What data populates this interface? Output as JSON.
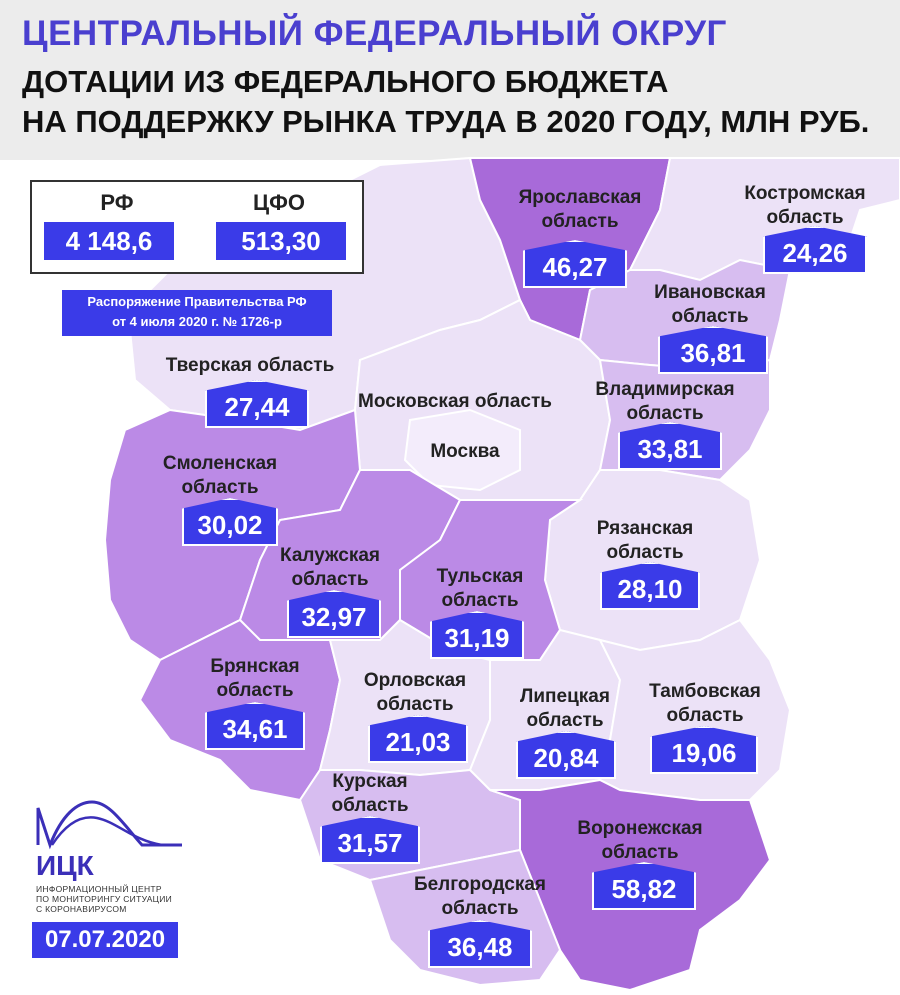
{
  "header": {
    "title_line1": "ЦЕНТРАЛЬНЫЙ ФЕДЕРАЛЬНЫЙ ОКРУГ",
    "title_line2": "ДОТАЦИИ ИЗ ФЕДЕРАЛЬНОГО БЮДЖЕТА",
    "title_line3": "НА ПОДДЕРЖКУ РЫНКА ТРУДА В 2020 ГОДУ, МЛН РУБ."
  },
  "totals": {
    "rf_label": "РФ",
    "rf_value": "4 148,6",
    "cfo_label": "ЦФО",
    "cfo_value": "513,30"
  },
  "decree": {
    "line1": "Распоряжение Правительства РФ",
    "line2": "от 4 июля 2020 г.  № 1726-р"
  },
  "regions": {
    "yaroslavl": {
      "name1": "Ярославская",
      "name2": "область",
      "value": "46,27"
    },
    "kostroma": {
      "name1": "Костромская",
      "name2": "область",
      "value": "24,26"
    },
    "ivanovo": {
      "name1": "Ивановская",
      "name2": "область",
      "value": "36,81"
    },
    "tver": {
      "name1": "Тверская область",
      "value": "27,44"
    },
    "moscow_oblast": {
      "name1": "Московская область"
    },
    "moscow": {
      "name1": "Москва"
    },
    "vladimir": {
      "name1": "Владимирская",
      "name2": "область",
      "value": "33,81"
    },
    "smolensk": {
      "name1": "Смоленская",
      "name2": "область",
      "value": "30,02"
    },
    "ryazan": {
      "name1": "Рязанская",
      "name2": "область",
      "value": "28,10"
    },
    "kaluga": {
      "name1": "Калужская",
      "name2": "область",
      "value": "32,97"
    },
    "tula": {
      "name1": "Тульская",
      "name2": "область",
      "value": "31,19"
    },
    "bryansk": {
      "name1": "Брянская",
      "name2": "область",
      "value": "34,61"
    },
    "orel": {
      "name1": "Орловская",
      "name2": "область",
      "value": "21,03"
    },
    "lipetsk": {
      "name1": "Липецкая",
      "name2": "область",
      "value": "20,84"
    },
    "tambov": {
      "name1": "Тамбовская",
      "name2": "область",
      "value": "19,06"
    },
    "kursk": {
      "name1": "Курская",
      "name2": "область",
      "value": "31,57"
    },
    "voronezh": {
      "name1": "Воронежская",
      "name2": "область",
      "value": "58,82"
    },
    "belgorod": {
      "name1": "Белгородская",
      "name2": "область",
      "value": "36,48"
    }
  },
  "logo": {
    "abbr": "ИЦК",
    "sub1": "ИНФОРМАЦИОННЫЙ ЦЕНТР",
    "sub2": "ПО МОНИТОРИНГУ СИТУАЦИИ",
    "sub3": "С КОРОНАВИРУСОМ"
  },
  "date": "07.07.2020",
  "colors": {
    "accent": "#3a3be8",
    "title": "#4a3fcf",
    "region_light": "#ece2f7",
    "region_mid": "#d7bdf0",
    "region_dark": "#bb8ae6",
    "region_darkest": "#a86ad9"
  }
}
